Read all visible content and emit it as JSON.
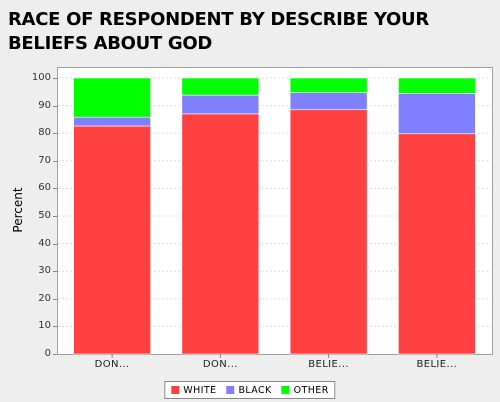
{
  "chart_data": {
    "type": "bar",
    "stacked": true,
    "title": "RACE OF RESPONDENT BY DESCRIBE YOUR BELIEFS ABOUT GOD",
    "xlabel": "",
    "ylabel": "Percent",
    "ylim": [
      0,
      100
    ],
    "yticks": [
      0,
      10,
      20,
      30,
      40,
      50,
      60,
      70,
      80,
      90,
      100
    ],
    "grid": true,
    "legend_position": "bottom",
    "categories": [
      "DON...",
      "DON...",
      "BELIE...",
      "BELIE..."
    ],
    "series": [
      {
        "name": "WHITE",
        "color": "#ff4040",
        "values": [
          82.6,
          87.0,
          88.5,
          79.8
        ]
      },
      {
        "name": "BLACK",
        "color": "#8080ff",
        "values": [
          3.2,
          6.8,
          6.2,
          14.6
        ]
      },
      {
        "name": "OTHER",
        "color": "#00ff00",
        "values": [
          14.2,
          6.2,
          5.3,
          5.6
        ]
      }
    ]
  }
}
